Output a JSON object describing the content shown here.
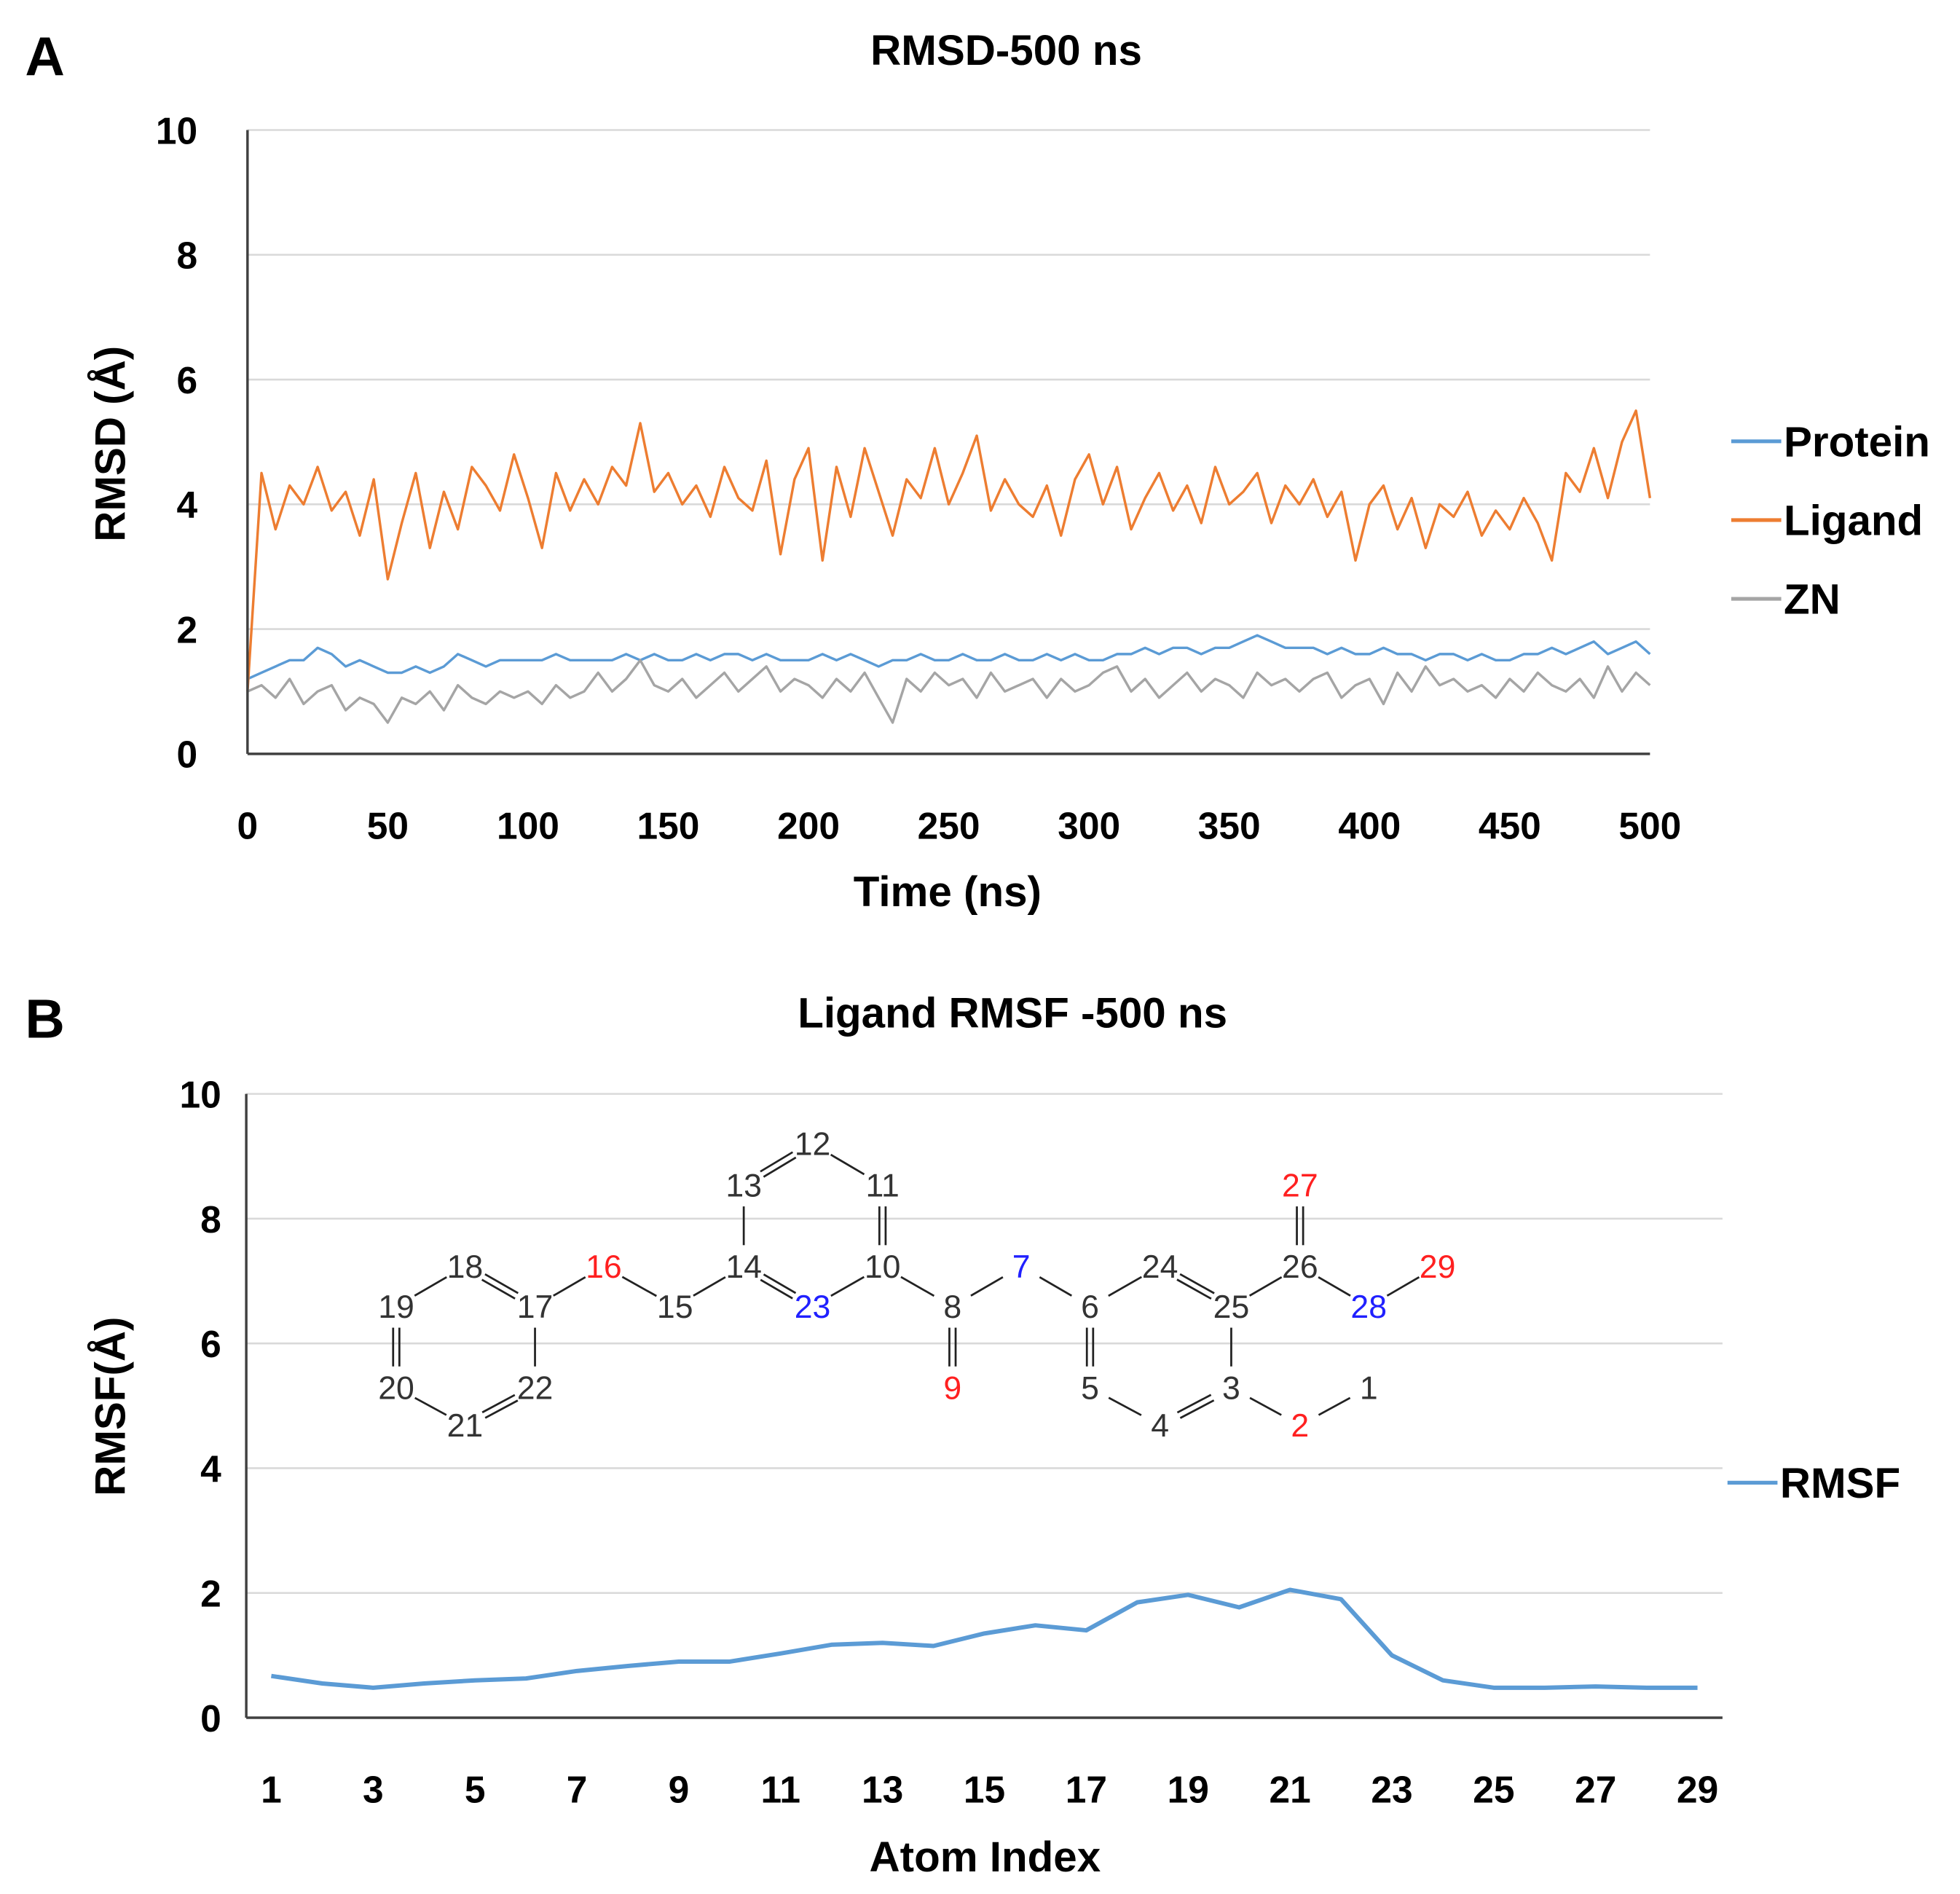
{
  "chart_data": [
    {
      "panel_label": "A",
      "type": "line",
      "title": "RMSD-500 ns",
      "xlabel": "Time (ns)",
      "ylabel": "RMSD (Å)",
      "xlim": [
        0,
        500
      ],
      "ylim": [
        0,
        10
      ],
      "xticks": [
        "0",
        "50",
        "100",
        "150",
        "200",
        "250",
        "300",
        "350",
        "400",
        "450",
        "500"
      ],
      "yticks": [
        "0",
        "2",
        "4",
        "6",
        "8",
        "10"
      ],
      "grid": true,
      "legend_position": "right",
      "x_step": 5,
      "series": [
        {
          "name": "Protein",
          "color": "#5b9bd5",
          "values": [
            1.2,
            1.3,
            1.4,
            1.5,
            1.5,
            1.7,
            1.6,
            1.4,
            1.5,
            1.4,
            1.3,
            1.3,
            1.4,
            1.3,
            1.4,
            1.6,
            1.5,
            1.4,
            1.5,
            1.5,
            1.5,
            1.5,
            1.6,
            1.5,
            1.5,
            1.5,
            1.5,
            1.6,
            1.5,
            1.6,
            1.5,
            1.5,
            1.6,
            1.5,
            1.6,
            1.6,
            1.5,
            1.6,
            1.5,
            1.5,
            1.5,
            1.6,
            1.5,
            1.6,
            1.5,
            1.4,
            1.5,
            1.5,
            1.6,
            1.5,
            1.5,
            1.6,
            1.5,
            1.5,
            1.6,
            1.5,
            1.5,
            1.6,
            1.5,
            1.6,
            1.5,
            1.5,
            1.6,
            1.6,
            1.7,
            1.6,
            1.7,
            1.7,
            1.6,
            1.7,
            1.7,
            1.8,
            1.9,
            1.8,
            1.7,
            1.7,
            1.7,
            1.6,
            1.7,
            1.6,
            1.6,
            1.7,
            1.6,
            1.6,
            1.5,
            1.6,
            1.6,
            1.5,
            1.6,
            1.5,
            1.5,
            1.6,
            1.6,
            1.7,
            1.6,
            1.7,
            1.8,
            1.6,
            1.7,
            1.8,
            1.6
          ]
        },
        {
          "name": "Ligand",
          "color": "#ed7d31",
          "values": [
            1.0,
            4.5,
            3.6,
            4.3,
            4.0,
            4.6,
            3.9,
            4.2,
            3.5,
            4.4,
            2.8,
            3.7,
            4.5,
            3.3,
            4.2,
            3.6,
            4.6,
            4.3,
            3.9,
            4.8,
            4.1,
            3.3,
            4.5,
            3.9,
            4.4,
            4.0,
            4.6,
            4.3,
            5.3,
            4.2,
            4.5,
            4.0,
            4.3,
            3.8,
            4.6,
            4.1,
            3.9,
            4.7,
            3.2,
            4.4,
            4.9,
            3.1,
            4.6,
            3.8,
            4.9,
            4.2,
            3.5,
            4.4,
            4.1,
            4.9,
            4.0,
            4.5,
            5.1,
            3.9,
            4.4,
            4.0,
            3.8,
            4.3,
            3.5,
            4.4,
            4.8,
            4.0,
            4.6,
            3.6,
            4.1,
            4.5,
            3.9,
            4.3,
            3.7,
            4.6,
            4.0,
            4.2,
            4.5,
            3.7,
            4.3,
            4.0,
            4.4,
            3.8,
            4.2,
            3.1,
            4.0,
            4.3,
            3.6,
            4.1,
            3.3,
            4.0,
            3.8,
            4.2,
            3.5,
            3.9,
            3.6,
            4.1,
            3.7,
            3.1,
            4.5,
            4.2,
            4.9,
            4.1,
            5.0,
            5.5,
            4.1
          ]
        },
        {
          "name": "ZN",
          "color": "#a5a5a5",
          "values": [
            1.0,
            1.1,
            0.9,
            1.2,
            0.8,
            1.0,
            1.1,
            0.7,
            0.9,
            0.8,
            0.5,
            0.9,
            0.8,
            1.0,
            0.7,
            1.1,
            0.9,
            0.8,
            1.0,
            0.9,
            1.0,
            0.8,
            1.1,
            0.9,
            1.0,
            1.3,
            1.0,
            1.2,
            1.5,
            1.1,
            1.0,
            1.2,
            0.9,
            1.1,
            1.3,
            1.0,
            1.2,
            1.4,
            1.0,
            1.2,
            1.1,
            0.9,
            1.2,
            1.0,
            1.3,
            0.9,
            0.5,
            1.2,
            1.0,
            1.3,
            1.1,
            1.2,
            0.9,
            1.3,
            1.0,
            1.1,
            1.2,
            0.9,
            1.2,
            1.0,
            1.1,
            1.3,
            1.4,
            1.0,
            1.2,
            0.9,
            1.1,
            1.3,
            1.0,
            1.2,
            1.1,
            0.9,
            1.3,
            1.1,
            1.2,
            1.0,
            1.2,
            1.3,
            0.9,
            1.1,
            1.2,
            0.8,
            1.3,
            1.0,
            1.4,
            1.1,
            1.2,
            1.0,
            1.1,
            0.9,
            1.2,
            1.0,
            1.3,
            1.1,
            1.0,
            1.2,
            0.9,
            1.4,
            1.0,
            1.3,
            1.1
          ]
        }
      ]
    },
    {
      "panel_label": "B",
      "type": "line",
      "title": "Ligand RMSF -500 ns",
      "xlabel": "Atom Index",
      "ylabel": "RMSF(Å)",
      "xlim": [
        1,
        29
      ],
      "ylim": [
        0,
        10
      ],
      "xticks": [
        "1",
        "3",
        "5",
        "7",
        "9",
        "11",
        "13",
        "15",
        "17",
        "19",
        "21",
        "23",
        "25",
        "27",
        "29"
      ],
      "yticks": [
        "0",
        "2",
        "4",
        "6",
        "8",
        "10"
      ],
      "grid": true,
      "legend_position": "right",
      "series": [
        {
          "name": "RMSF",
          "color": "#5b9bd5",
          "x": [
            1,
            2,
            3,
            4,
            5,
            6,
            7,
            8,
            9,
            10,
            11,
            12,
            13,
            14,
            15,
            16,
            17,
            18,
            19,
            20,
            21,
            22,
            23,
            24,
            25,
            26,
            27,
            28,
            29
          ],
          "values": [
            0.67,
            0.55,
            0.48,
            0.55,
            0.6,
            0.63,
            0.75,
            0.83,
            0.9,
            0.9,
            1.03,
            1.17,
            1.2,
            1.15,
            1.35,
            1.48,
            1.4,
            1.85,
            1.97,
            1.77,
            2.05,
            1.9,
            1.0,
            0.6,
            0.48,
            0.48,
            0.5,
            0.48,
            0.48
          ]
        }
      ],
      "molecule_inset": {
        "atoms": [
          {
            "label": "1",
            "color": "#333333"
          },
          {
            "label": "2",
            "color": "#ff2020"
          },
          {
            "label": "3",
            "color": "#333333"
          },
          {
            "label": "4",
            "color": "#333333"
          },
          {
            "label": "5",
            "color": "#333333"
          },
          {
            "label": "6",
            "color": "#333333"
          },
          {
            "label": "7",
            "color": "#2020ff"
          },
          {
            "label": "8",
            "color": "#333333"
          },
          {
            "label": "9",
            "color": "#ff2020"
          },
          {
            "label": "10",
            "color": "#333333"
          },
          {
            "label": "11",
            "color": "#333333"
          },
          {
            "label": "12",
            "color": "#333333"
          },
          {
            "label": "13",
            "color": "#333333"
          },
          {
            "label": "14",
            "color": "#333333"
          },
          {
            "label": "15",
            "color": "#333333"
          },
          {
            "label": "16",
            "color": "#ff2020"
          },
          {
            "label": "17",
            "color": "#333333"
          },
          {
            "label": "18",
            "color": "#333333"
          },
          {
            "label": "19",
            "color": "#333333"
          },
          {
            "label": "20",
            "color": "#333333"
          },
          {
            "label": "21",
            "color": "#333333"
          },
          {
            "label": "22",
            "color": "#333333"
          },
          {
            "label": "23",
            "color": "#2020ff"
          },
          {
            "label": "24",
            "color": "#333333"
          },
          {
            "label": "25",
            "color": "#333333"
          },
          {
            "label": "26",
            "color": "#333333"
          },
          {
            "label": "27",
            "color": "#ff2020"
          },
          {
            "label": "28",
            "color": "#2020ff"
          },
          {
            "label": "29",
            "color": "#ff2020"
          }
        ]
      }
    }
  ]
}
